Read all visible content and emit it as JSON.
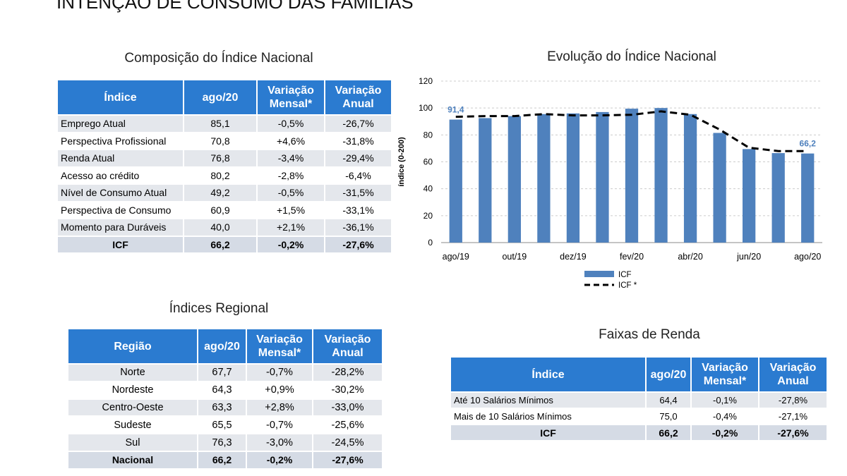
{
  "header": {
    "title": "INTENÇÃO DE CONSUMO DAS FAMÍLIAS"
  },
  "tables": [
    {
      "title": "Composição do Índice Nacional",
      "header": [
        "Índice",
        "ago/20",
        "Variação Mensal*",
        "Variação Anual"
      ],
      "rows": [
        [
          "Emprego Atual",
          "85,1",
          "-0,5%",
          "-26,7%"
        ],
        [
          "Perspectiva Profissional",
          "70,8",
          "+4,6%",
          "-31,8%"
        ],
        [
          "Renda Atual",
          "76,8",
          "-3,4%",
          "-29,4%"
        ],
        [
          "Acesso ao crédito",
          "80,2",
          "-2,8%",
          "-6,4%"
        ],
        [
          "Nível de Consumo Atual",
          "49,2",
          "-0,5%",
          "-31,5%"
        ],
        [
          "Perspectiva de Consumo",
          "60,9",
          "+1,5%",
          "-33,1%"
        ],
        [
          "Momento para Duráveis",
          "40,0",
          "+2,1%",
          "-36,1%"
        ],
        [
          "ICF",
          "66,2",
          "-0,2%",
          "-27,6%"
        ]
      ]
    },
    {
      "title": "Índices Regional",
      "header": [
        "Região",
        "ago/20",
        "Variação Mensal*",
        "Variação Anual"
      ],
      "rows": [
        [
          "Norte",
          "67,7",
          "-0,7%",
          "-28,2%"
        ],
        [
          "Nordeste",
          "64,3",
          "+0,9%",
          "-30,2%"
        ],
        [
          "Centro-Oeste",
          "63,3",
          "+2,8%",
          "-33,0%"
        ],
        [
          "Sudeste",
          "65,5",
          "-0,7%",
          "-25,6%"
        ],
        [
          "Sul",
          "76,3",
          "-3,0%",
          "-24,5%"
        ],
        [
          "Nacional",
          "66,2",
          "-0,2%",
          "-27,6%"
        ]
      ]
    },
    {
      "title": "Faixas de Renda",
      "header": [
        "Índice",
        "ago/20",
        "Variação Mensal*",
        "Variação Anual"
      ],
      "rows": [
        [
          "Até 10 Salários Mínimos",
          "64,4",
          "-0,1%",
          "-27,8%"
        ],
        [
          "Mais de 10 Salários Mínimos",
          "75,0",
          "-0,4%",
          "-27,1%"
        ],
        [
          "ICF",
          "66,2",
          "-0,2%",
          "-27,6%"
        ]
      ]
    }
  ],
  "chart_data": {
    "type": "bar",
    "title": "Evolução do Índice Nacional",
    "y_label": "índice (0-200)",
    "categories": [
      "ago/19",
      null,
      "out/19",
      null,
      "dez/19",
      null,
      "fev/20",
      null,
      "abr/20",
      null,
      "jun/20",
      null,
      "ago/20"
    ],
    "series": [
      {
        "name": "ICF",
        "type": "bar",
        "color": "#4f81bd",
        "values": [
          91.4,
          92.5,
          94,
          95.5,
          96,
          97,
          99.5,
          100,
          95.5,
          81.5,
          69.5,
          66.5,
          66.2
        ],
        "value_labels": [
          "91,4",
          null,
          null,
          null,
          null,
          null,
          null,
          null,
          null,
          null,
          null,
          null,
          "66,2"
        ]
      },
      {
        "name": "ICF *",
        "type": "line",
        "color": "#000000",
        "values": [
          93.5,
          94,
          94,
          95.5,
          94.5,
          94.5,
          95,
          97.5,
          95,
          84,
          70.5,
          68,
          68
        ]
      }
    ],
    "ylim": [
      0,
      120
    ],
    "yticks": [
      0,
      20,
      40,
      60,
      80,
      100,
      120
    ],
    "grid": true
  }
}
